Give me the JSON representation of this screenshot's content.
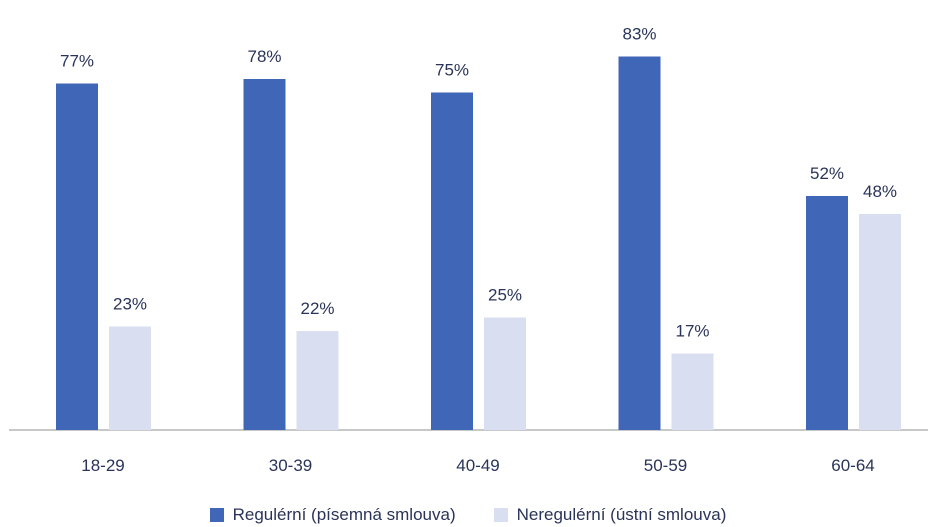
{
  "chart_data": {
    "type": "bar",
    "categories": [
      "18-29",
      "30-39",
      "40-49",
      "50-59",
      "60-64"
    ],
    "series": [
      {
        "name": "Regulérní (písemná smlouva)",
        "values": [
          77,
          78,
          75,
          83,
          52
        ],
        "color": "#4066b8",
        "labels": [
          "77%",
          "78%",
          "75%",
          "83%",
          "52%"
        ]
      },
      {
        "name": "Neregulérní (ústní smlouva)",
        "values": [
          23,
          22,
          25,
          17,
          48
        ],
        "color": "#d9dff0",
        "labels": [
          "23%",
          "22%",
          "25%",
          "17%",
          "48%"
        ]
      }
    ],
    "unit": "%",
    "ylim": [
      0,
      90
    ],
    "grid": false,
    "legend_position": "bottom",
    "label_color": "#2a3458",
    "axis_color": "#b5b5b5"
  }
}
